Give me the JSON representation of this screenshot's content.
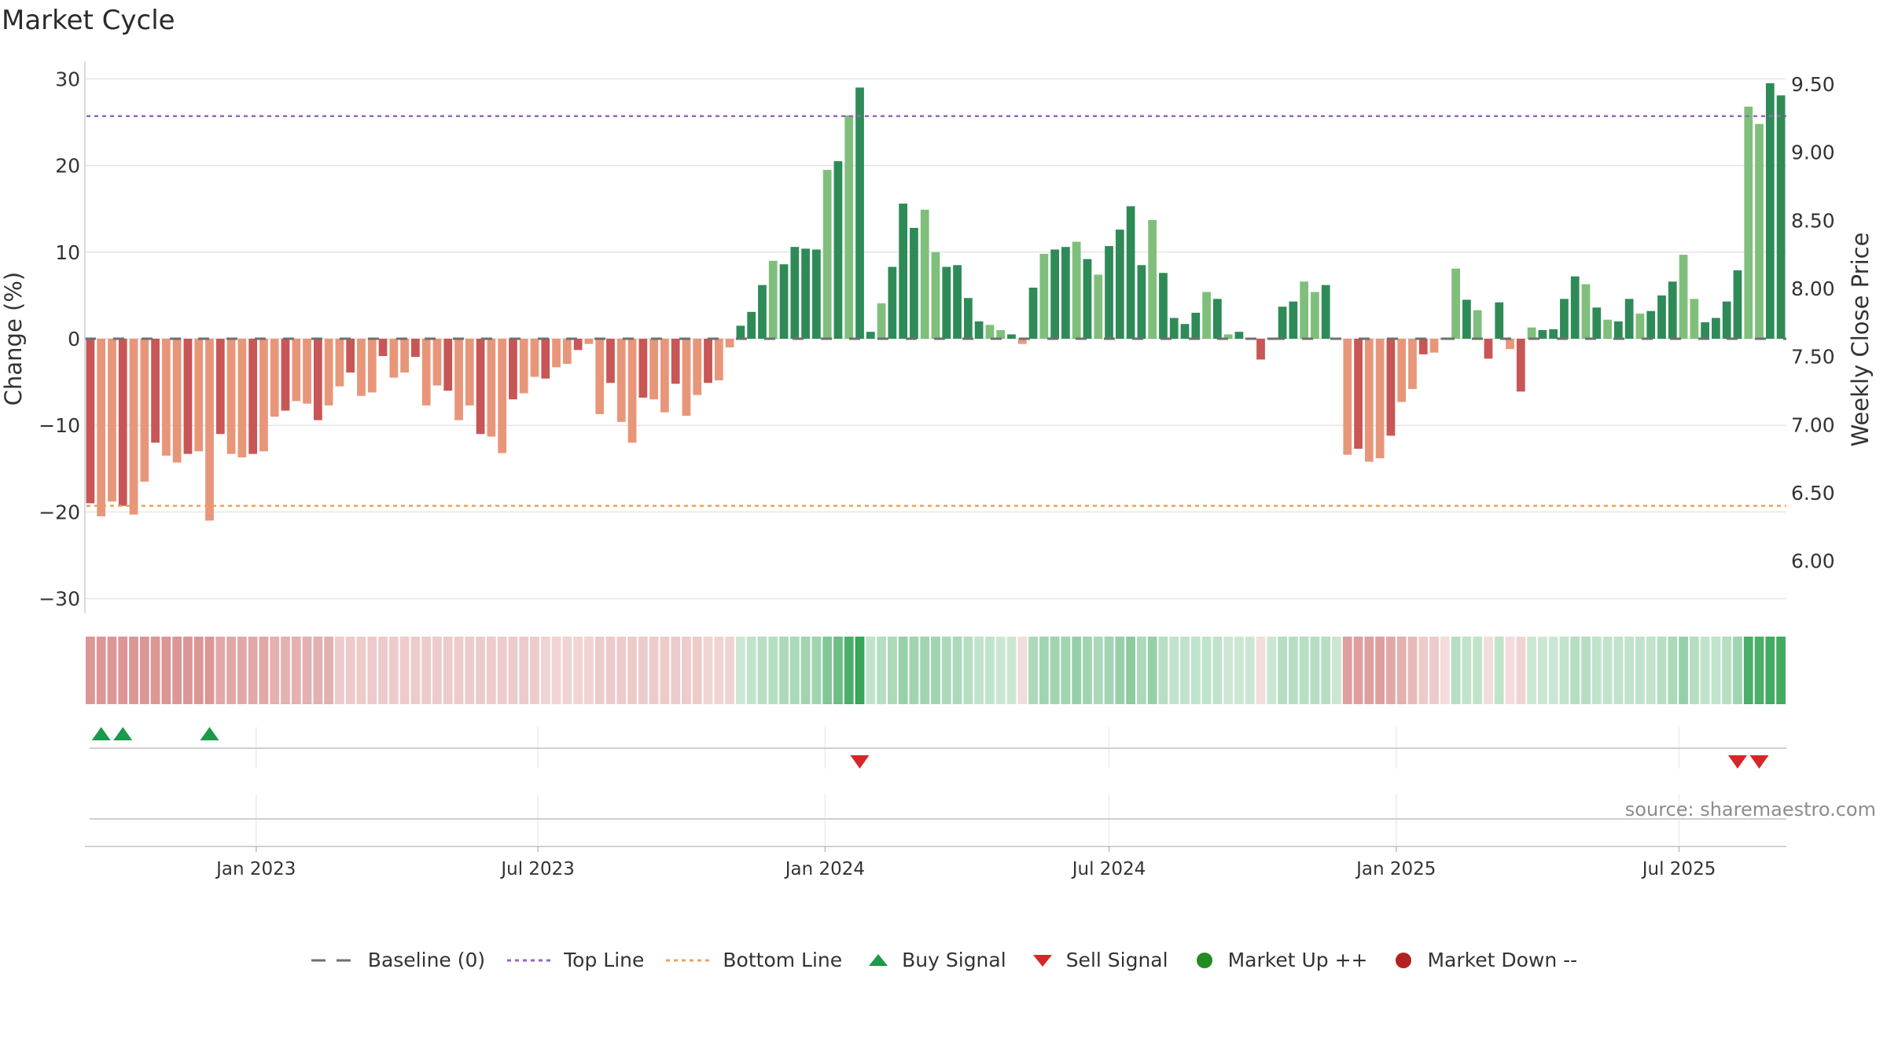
{
  "chart_data": {
    "type": "bar",
    "title": "Market Cycle",
    "ylabel": "Change (%)",
    "ylabel_right": "Weekly Close Price",
    "ylim": [
      -30,
      30
    ],
    "yticks": [
      -30,
      -20,
      -10,
      0,
      10,
      20,
      30
    ],
    "yticks_right": [
      6.0,
      6.5,
      7.0,
      7.5,
      8.0,
      8.5,
      9.0,
      9.5
    ],
    "ylim_right": [
      5.55,
      9.55
    ],
    "top_line": 25.7,
    "bottom_line": -19.3,
    "baseline": 0,
    "x_start_date": "2022-10-07",
    "x_step": "weekly",
    "xtick_labels": [
      "Jan 2023",
      "Jul 2023",
      "Jan 2024",
      "Jul 2024",
      "Jan 2025",
      "Jul 2025"
    ],
    "xtick_index": [
      15.3,
      41.3,
      67.8,
      94,
      120.5,
      146.6
    ],
    "values": [
      -19,
      -20.5,
      -18.8,
      -19.3,
      -20.3,
      -16.5,
      -12,
      -13.5,
      -14.3,
      -13.3,
      -13,
      -21,
      -11,
      -13.3,
      -13.7,
      -13.3,
      -13,
      -9,
      -8.3,
      -7.2,
      -7.5,
      -9.4,
      -7.7,
      -5.5,
      -3.9,
      -6.6,
      -6.2,
      -2,
      -4.5,
      -3.9,
      -2.1,
      -7.7,
      -5.4,
      -6,
      -9.4,
      -7.7,
      -11,
      -11.3,
      -13.2,
      -7,
      -6.3,
      -4.4,
      -4.6,
      -3.3,
      -2.9,
      -1.3,
      -0.6,
      -8.7,
      -5.1,
      -9.6,
      -12,
      -6.8,
      -7,
      -8.5,
      -5.2,
      -8.9,
      -6.5,
      -5.1,
      -4.8,
      -1,
      1.5,
      3.1,
      6.2,
      9,
      8.6,
      10.6,
      10.4,
      10.3,
      19.5,
      20.5,
      25.8,
      29,
      0.8,
      4.1,
      8.3,
      15.6,
      12.8,
      14.9,
      10,
      8.3,
      8.5,
      4.7,
      2,
      1.6,
      1,
      0.5,
      -0.6,
      5.9,
      9.8,
      10.3,
      10.6,
      11.2,
      9.2,
      7.4,
      10.7,
      12.6,
      15.3,
      8.5,
      13.7,
      7.6,
      2.4,
      1.7,
      3,
      5.4,
      4.6,
      0.5,
      0.8,
      0,
      -2.4,
      0,
      3.7,
      4.3,
      6.6,
      5.4,
      6.2,
      0,
      -13.4,
      -12.7,
      -14.2,
      -13.8,
      -11.2,
      -7.3,
      -5.8,
      -1.8,
      -1.6,
      0,
      8.1,
      4.5,
      3.3,
      -2.3,
      4.2,
      -1.2,
      -6.1,
      1.3,
      1,
      1.1,
      4.6,
      7.2,
      6.3,
      3.6,
      2.2,
      2,
      4.6,
      2.9,
      3.2,
      5,
      6.6,
      9.7,
      4.6,
      1.9,
      2.4,
      4.3,
      7.9,
      26.8,
      24.8,
      29.5,
      28.1
    ],
    "heat_values": [
      -0.6,
      -0.6,
      -0.6,
      -0.6,
      -0.6,
      -0.6,
      -0.6,
      -0.6,
      -0.6,
      -0.6,
      -0.6,
      -0.6,
      -0.5,
      -0.5,
      -0.5,
      -0.5,
      -0.5,
      -0.45,
      -0.45,
      -0.45,
      -0.45,
      -0.45,
      -0.45,
      -0.3,
      -0.3,
      -0.3,
      -0.3,
      -0.3,
      -0.3,
      -0.3,
      -0.3,
      -0.3,
      -0.3,
      -0.3,
      -0.3,
      -0.3,
      -0.3,
      -0.3,
      -0.3,
      -0.3,
      -0.3,
      -0.3,
      -0.25,
      -0.25,
      -0.25,
      -0.25,
      -0.25,
      -0.3,
      -0.3,
      -0.3,
      -0.3,
      -0.3,
      -0.3,
      -0.3,
      -0.3,
      -0.3,
      -0.3,
      -0.25,
      -0.25,
      -0.25,
      0.25,
      0.3,
      0.35,
      0.35,
      0.4,
      0.4,
      0.45,
      0.45,
      0.6,
      0.7,
      0.85,
      0.95,
      0.3,
      0.35,
      0.4,
      0.5,
      0.45,
      0.45,
      0.45,
      0.4,
      0.4,
      0.35,
      0.3,
      0.3,
      0.25,
      0.25,
      -0.2,
      0.4,
      0.45,
      0.45,
      0.45,
      0.5,
      0.45,
      0.4,
      0.45,
      0.5,
      0.55,
      0.4,
      0.5,
      0.35,
      0.3,
      0.3,
      0.3,
      0.3,
      0.3,
      0.25,
      0.25,
      0.25,
      -0.2,
      0.25,
      0.35,
      0.35,
      0.35,
      0.35,
      0.35,
      0.25,
      -0.55,
      -0.55,
      -0.55,
      -0.55,
      -0.5,
      -0.45,
      -0.4,
      -0.3,
      -0.3,
      -0.2,
      0.35,
      0.3,
      0.3,
      -0.2,
      0.3,
      -0.2,
      -0.25,
      0.25,
      0.25,
      0.25,
      0.3,
      0.35,
      0.35,
      0.3,
      0.3,
      0.3,
      0.3,
      0.3,
      0.3,
      0.35,
      0.4,
      0.5,
      0.35,
      0.3,
      0.3,
      0.35,
      0.45,
      0.85,
      0.85,
      0.9,
      0.9
    ],
    "buy_signals": [
      1,
      3,
      11
    ],
    "sell_signals": [
      71,
      152,
      154
    ],
    "legend": [
      {
        "label": "Baseline (0)",
        "symbol": "dash",
        "color": "#6f6f6f"
      },
      {
        "label": "Top Line",
        "symbol": "dot",
        "color": "#9467bd"
      },
      {
        "label": "Bottom Line",
        "symbol": "dot",
        "color": "#e8a25c"
      },
      {
        "label": "Buy Signal",
        "symbol": "triangle-up",
        "color": "#1a9a4a"
      },
      {
        "label": "Sell Signal",
        "symbol": "triangle-down",
        "color": "#d62728"
      },
      {
        "label": "Market Up ++",
        "symbol": "circle",
        "color": "#228b22"
      },
      {
        "label": "Market Down --",
        "symbol": "circle",
        "color": "#b22222"
      }
    ],
    "source": "source: sharemaestro.com",
    "grid": true
  }
}
